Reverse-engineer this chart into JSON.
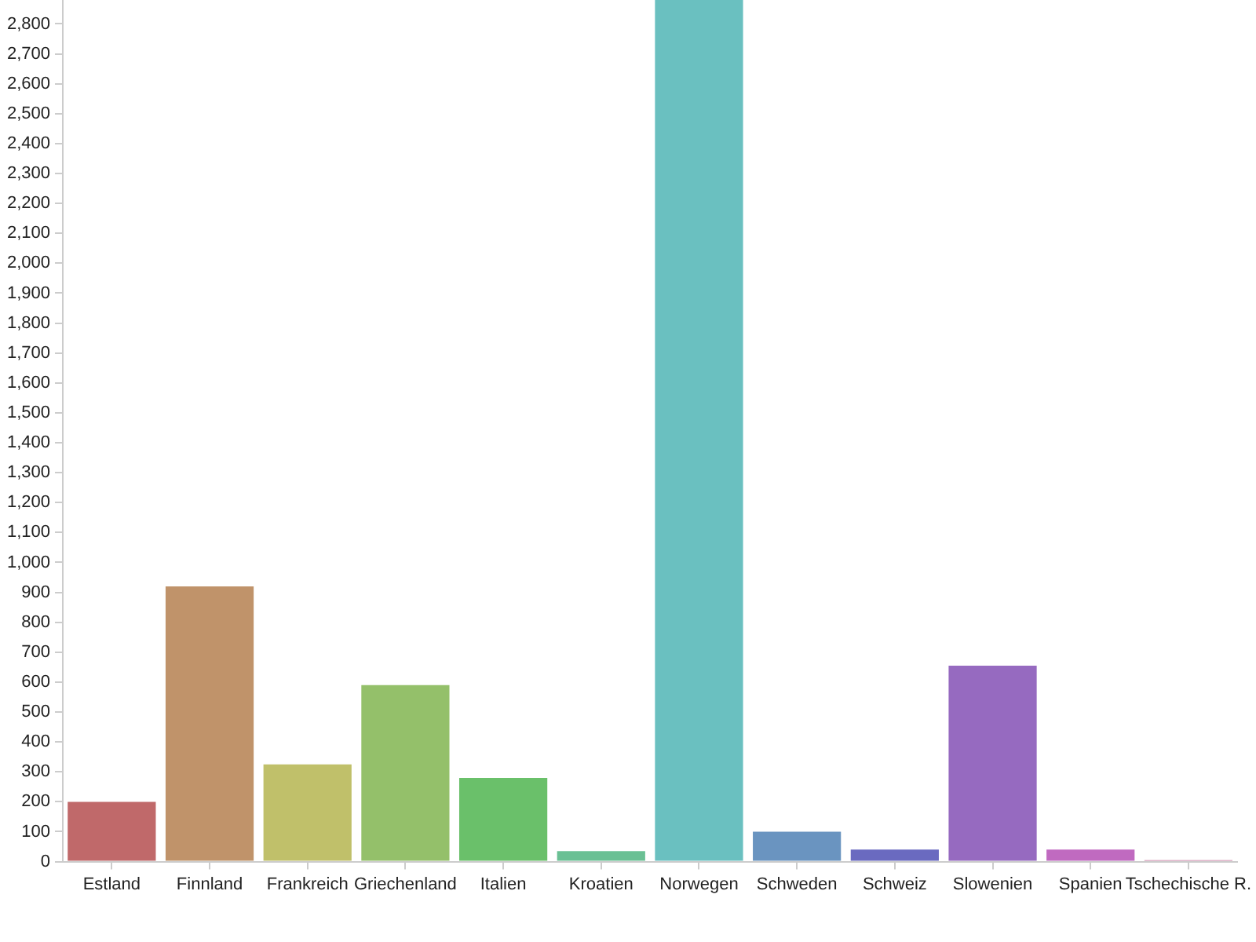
{
  "chart_data": {
    "type": "bar",
    "categories": [
      "Estland",
      "Finnland",
      "Frankreich",
      "Griechenland",
      "Italien",
      "Kroatien",
      "Norwegen",
      "Schweden",
      "Schweiz",
      "Slowenien",
      "Spanien",
      "Tschechische R."
    ],
    "values": [
      200,
      920,
      325,
      590,
      280,
      35,
      2880,
      100,
      40,
      655,
      40,
      5
    ],
    "colors": [
      "#c0696a",
      "#c0936a",
      "#c0c06a",
      "#94c06a",
      "#6ac06a",
      "#6ac094",
      "#6ac0c0",
      "#6a94c0",
      "#6a6ac0",
      "#966ac0",
      "#c06ac0",
      "#c06a94"
    ],
    "ylim": [
      0,
      2880
    ],
    "yticks": [
      0,
      100,
      200,
      300,
      400,
      500,
      600,
      700,
      800,
      900,
      {
        "value": 1000,
        "label": "1,000"
      },
      {
        "value": 1100,
        "label": "1,100"
      },
      {
        "value": 1200,
        "label": "1,200"
      },
      {
        "value": 1300,
        "label": "1,300"
      },
      {
        "value": 1400,
        "label": "1,400"
      },
      {
        "value": 1500,
        "label": "1,500"
      },
      {
        "value": 1600,
        "label": "1,600"
      },
      {
        "value": 1700,
        "label": "1,700"
      },
      {
        "value": 1800,
        "label": "1,800"
      },
      {
        "value": 1900,
        "label": "1,900"
      },
      {
        "value": 2000,
        "label": "2,000"
      },
      {
        "value": 2100,
        "label": "2,100"
      },
      {
        "value": 2200,
        "label": "2,200"
      },
      {
        "value": 2300,
        "label": "2,300"
      },
      {
        "value": 2400,
        "label": "2,400"
      },
      {
        "value": 2500,
        "label": "2,500"
      },
      {
        "value": 2600,
        "label": "2,600"
      },
      {
        "value": 2700,
        "label": "2,700"
      },
      {
        "value": 2800,
        "label": "2,800"
      }
    ]
  }
}
